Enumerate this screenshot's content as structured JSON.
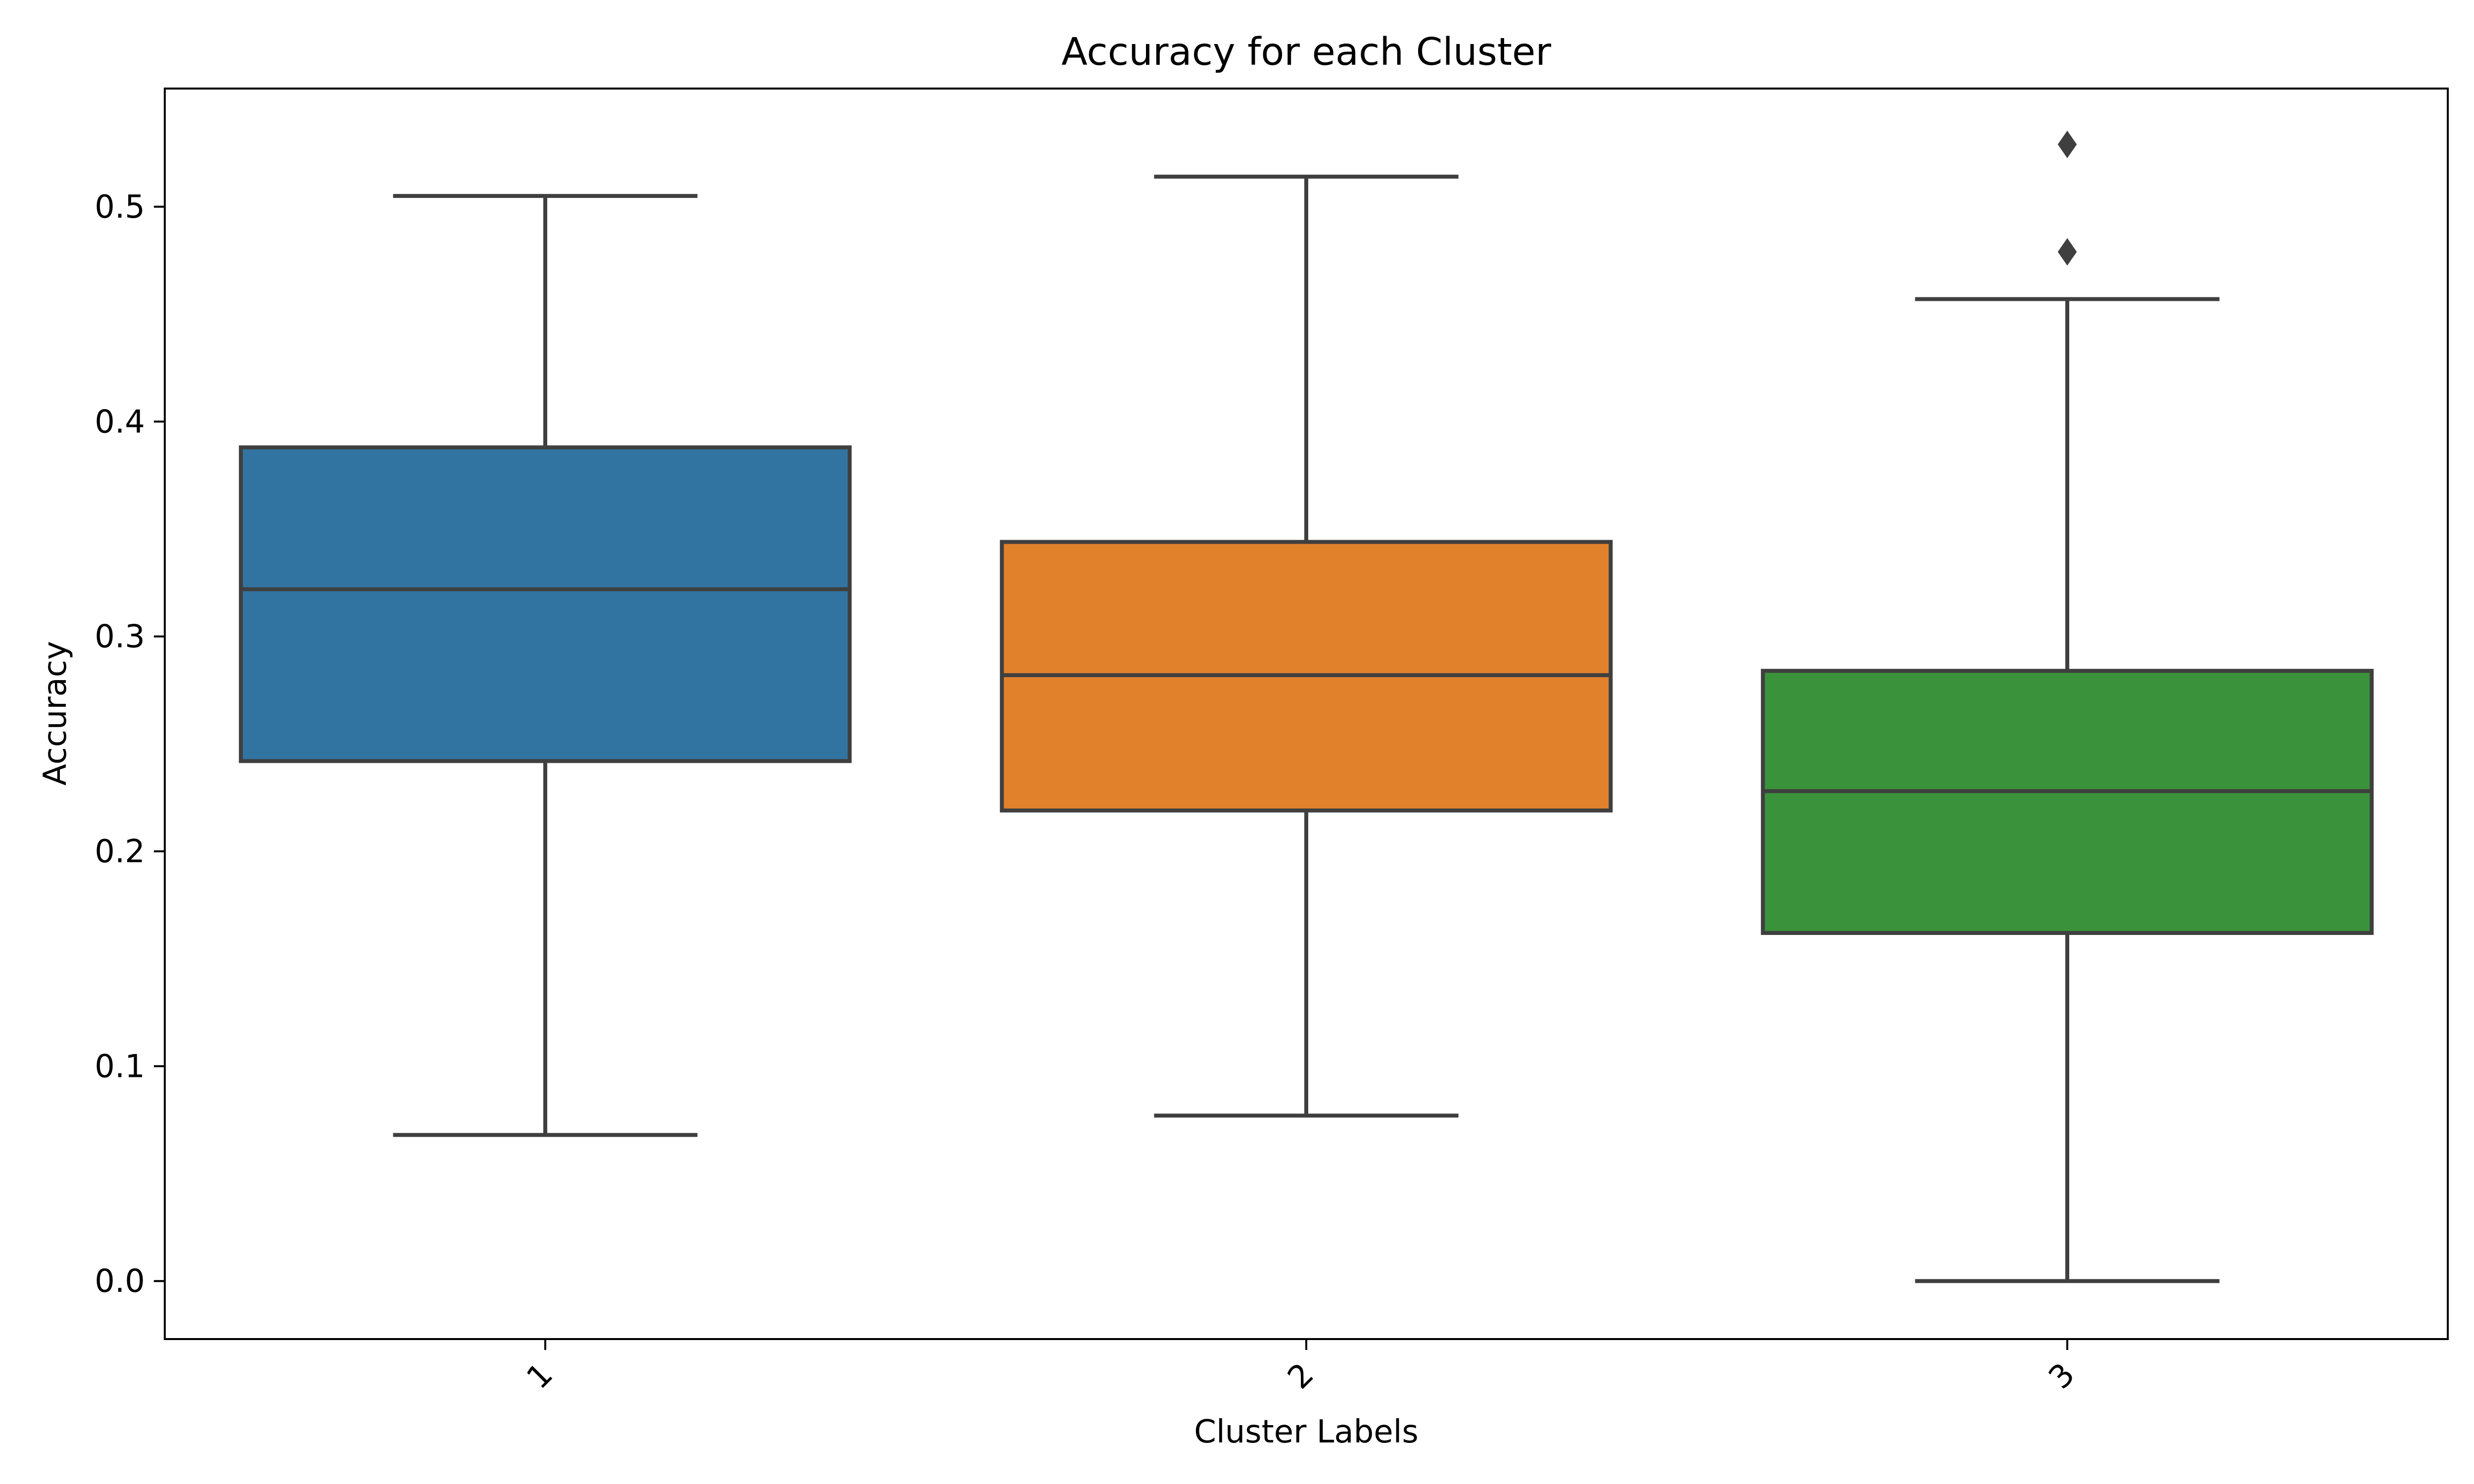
{
  "chart_data": {
    "type": "box",
    "title": "Accuracy for each Cluster",
    "xlabel": "Cluster Labels",
    "ylabel": "Accuracy",
    "ylim": [
      -0.027,
      0.555
    ],
    "yticks": [
      0.0,
      0.1,
      0.2,
      0.3,
      0.4,
      0.5
    ],
    "ytick_labels": [
      "0.0",
      "0.1",
      "0.2",
      "0.3",
      "0.4",
      "0.5"
    ],
    "categories": [
      "1",
      "2",
      "3"
    ],
    "boxes": [
      {
        "category": "1",
        "whisker_low": 0.068,
        "q1": 0.242,
        "median": 0.322,
        "q3": 0.388,
        "whisker_high": 0.505,
        "outliers": [],
        "color": "#3274a1"
      },
      {
        "category": "2",
        "whisker_low": 0.077,
        "q1": 0.219,
        "median": 0.282,
        "q3": 0.344,
        "whisker_high": 0.514,
        "outliers": [],
        "color": "#e1812c"
      },
      {
        "category": "3",
        "whisker_low": 0.0,
        "q1": 0.162,
        "median": 0.228,
        "q3": 0.284,
        "whisker_high": 0.457,
        "outliers": [
          0.479,
          0.529
        ],
        "color": "#3a923a"
      }
    ],
    "line_color": "#3f3f3f",
    "grid": false,
    "legend": "none"
  }
}
